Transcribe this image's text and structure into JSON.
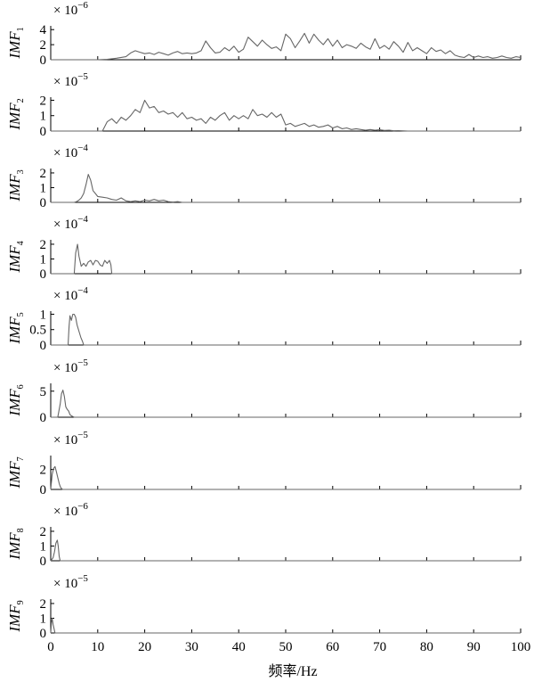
{
  "chart_data": {
    "type": "line",
    "xlabel": "频率/Hz",
    "xlim": [
      0,
      100
    ],
    "xticks": [
      0,
      10,
      20,
      30,
      40,
      50,
      60,
      70,
      80,
      90,
      100
    ],
    "panels": [
      {
        "ylabel": "IMF",
        "sub": "1",
        "mult_base": "× 10",
        "mult_exp": "−6",
        "yticks": [
          "4",
          "2",
          "0"
        ],
        "ytick_values": [
          4,
          2,
          0
        ],
        "ylim": [
          0,
          4.5
        ],
        "series": {
          "x": [
            0,
            5,
            10,
            12,
            14,
            16,
            17,
            18,
            19,
            20,
            21,
            22,
            23,
            24,
            25,
            26,
            27,
            28,
            29,
            30,
            31,
            32,
            33,
            34,
            35,
            36,
            37,
            38,
            39,
            40,
            41,
            42,
            43,
            44,
            45,
            46,
            47,
            48,
            49,
            50,
            51,
            52,
            53,
            54,
            55,
            56,
            57,
            58,
            59,
            60,
            61,
            62,
            63,
            64,
            65,
            66,
            67,
            68,
            69,
            70,
            71,
            72,
            73,
            74,
            75,
            76,
            77,
            78,
            79,
            80,
            81,
            82,
            83,
            84,
            85,
            86,
            87,
            88,
            89,
            90,
            91,
            92,
            93,
            94,
            95,
            96,
            97,
            98,
            99,
            100
          ],
          "y": [
            0,
            0,
            0,
            0.05,
            0.2,
            0.4,
            0.9,
            1.2,
            1.0,
            0.8,
            0.9,
            0.7,
            1.0,
            0.8,
            0.6,
            0.9,
            1.1,
            0.8,
            0.9,
            0.8,
            0.9,
            1.2,
            2.5,
            1.6,
            0.9,
            1.0,
            1.6,
            1.2,
            1.8,
            1.0,
            1.4,
            3.0,
            2.4,
            1.8,
            2.6,
            2.0,
            1.5,
            1.7,
            1.2,
            3.4,
            2.8,
            1.6,
            2.5,
            3.5,
            2.2,
            3.4,
            2.6,
            2.0,
            2.8,
            1.8,
            2.6,
            1.6,
            2.0,
            1.8,
            1.5,
            2.2,
            1.7,
            1.4,
            2.8,
            1.5,
            1.9,
            1.4,
            2.4,
            1.8,
            1.0,
            2.3,
            1.2,
            1.6,
            1.2,
            0.8,
            1.6,
            1.1,
            1.3,
            0.8,
            1.2,
            0.6,
            0.4,
            0.3,
            0.7,
            0.3,
            0.5,
            0.3,
            0.4,
            0.2,
            0.3,
            0.5,
            0.3,
            0.2,
            0.4,
            0.3
          ]
        }
      },
      {
        "ylabel": "IMF",
        "sub": "2",
        "mult_base": "× 10",
        "mult_exp": "−5",
        "yticks": [
          "2",
          "1",
          "0"
        ],
        "ytick_values": [
          2,
          1,
          0
        ],
        "ylim": [
          0,
          2.2
        ],
        "series": {
          "x": [
            0,
            11,
            12,
            13,
            14,
            15,
            16,
            17,
            18,
            19,
            20,
            21,
            22,
            23,
            24,
            25,
            26,
            27,
            28,
            29,
            30,
            31,
            32,
            33,
            34,
            35,
            36,
            37,
            38,
            39,
            40,
            41,
            42,
            43,
            44,
            45,
            46,
            47,
            48,
            49,
            50,
            51,
            52,
            53,
            54,
            55,
            56,
            57,
            58,
            59,
            60,
            61,
            62,
            63,
            64,
            65,
            66,
            67,
            68,
            69,
            70,
            71,
            72,
            73,
            74,
            75,
            76,
            100
          ],
          "y": [
            0,
            0,
            0.6,
            0.8,
            0.5,
            0.9,
            0.7,
            1.0,
            1.4,
            1.2,
            2.0,
            1.5,
            1.6,
            1.2,
            1.3,
            1.1,
            1.2,
            0.9,
            1.2,
            0.8,
            0.9,
            0.7,
            0.8,
            0.5,
            0.9,
            0.7,
            1.0,
            1.2,
            0.7,
            1.0,
            0.8,
            1.0,
            0.8,
            1.4,
            1.0,
            1.1,
            0.9,
            1.2,
            0.9,
            1.1,
            0.4,
            0.5,
            0.3,
            0.4,
            0.5,
            0.3,
            0.4,
            0.25,
            0.3,
            0.4,
            0.2,
            0.3,
            0.15,
            0.2,
            0.1,
            0.15,
            0.1,
            0.05,
            0.1,
            0.05,
            0.08,
            0.04,
            0.05,
            0.02,
            0.03,
            0.01,
            0,
            0
          ]
        }
      },
      {
        "ylabel": "IMF",
        "sub": "3",
        "mult_base": "× 10",
        "mult_exp": "−4",
        "yticks": [
          "2",
          "1",
          "0"
        ],
        "ytick_values": [
          2,
          1,
          0
        ],
        "ylim": [
          0,
          2.3
        ],
        "series": {
          "x": [
            0,
            5,
            5.5,
            6,
            6.5,
            7,
            7.5,
            8,
            8.5,
            9,
            9.5,
            10,
            11,
            12,
            13,
            14,
            15,
            16,
            17,
            18,
            19,
            20,
            21,
            22,
            23,
            24,
            25,
            26,
            27,
            28,
            100
          ],
          "y": [
            0,
            0,
            0.05,
            0.15,
            0.3,
            0.6,
            1.2,
            1.9,
            1.5,
            0.8,
            0.6,
            0.4,
            0.35,
            0.3,
            0.2,
            0.15,
            0.3,
            0.1,
            0.05,
            0.1,
            0.05,
            0.15,
            0.1,
            0.2,
            0.1,
            0.15,
            0.05,
            0.02,
            0.05,
            0,
            0
          ]
        }
      },
      {
        "ylabel": "IMF",
        "sub": "4",
        "mult_base": "× 10",
        "mult_exp": "−4",
        "yticks": [
          "2",
          "1",
          "0"
        ],
        "ytick_values": [
          2,
          1,
          0
        ],
        "ylim": [
          0,
          2.3
        ],
        "series": {
          "x": [
            0,
            5,
            5.3,
            5.7,
            6,
            6.5,
            7,
            7.5,
            8,
            8.5,
            9,
            9.5,
            10,
            10.5,
            11,
            11.5,
            12,
            12.5,
            12.8,
            13,
            100
          ],
          "y": [
            0,
            0,
            1.4,
            2.0,
            1.2,
            0.5,
            0.7,
            0.5,
            0.8,
            0.9,
            0.6,
            0.9,
            0.85,
            0.6,
            0.5,
            0.9,
            0.7,
            0.9,
            0.6,
            0,
            0
          ]
        }
      },
      {
        "ylabel": "IMF",
        "sub": "5",
        "mult_base": "× 10",
        "mult_exp": "−4",
        "yticks": [
          "1",
          "0.5",
          "0"
        ],
        "ytick_values": [
          1,
          0.5,
          0
        ],
        "ylim": [
          0,
          1.1
        ],
        "series": {
          "x": [
            0,
            3.7,
            3.9,
            4.1,
            4.4,
            4.7,
            5,
            5.3,
            5.6,
            6,
            6.4,
            6.8,
            7,
            100
          ],
          "y": [
            0,
            0,
            0.6,
            0.95,
            0.8,
            1.0,
            1.0,
            0.9,
            0.65,
            0.45,
            0.25,
            0.1,
            0,
            0
          ]
        }
      },
      {
        "ylabel": "IMF",
        "sub": "6",
        "mult_base": "× 10",
        "mult_exp": "−5",
        "yticks": [
          "5",
          "0"
        ],
        "ytick_values": [
          5,
          0
        ],
        "ylim": [
          0,
          6.5
        ],
        "series": {
          "x": [
            0,
            1.5,
            2,
            2.3,
            2.6,
            2.9,
            3.2,
            3.5,
            3.8,
            4.1,
            4.5,
            5,
            100
          ],
          "y": [
            0,
            0,
            2.5,
            4.5,
            5.2,
            4.0,
            2.0,
            1.5,
            1.2,
            0.5,
            0.2,
            0,
            0
          ]
        }
      },
      {
        "ylabel": "IMF",
        "sub": "7",
        "mult_base": "× 10",
        "mult_exp": "−5",
        "yticks": [
          "2",
          "0"
        ],
        "ytick_values": [
          2,
          0
        ],
        "ylim": [
          0,
          3.4
        ],
        "series": {
          "x": [
            0,
            0.3,
            0.6,
            0.9,
            1.2,
            1.5,
            1.8,
            2.1,
            2.5,
            100
          ],
          "y": [
            0,
            1.5,
            2.1,
            2.3,
            1.8,
            1.2,
            0.6,
            0.2,
            0,
            0
          ]
        }
      },
      {
        "ylabel": "IMF",
        "sub": "8",
        "mult_base": "× 10",
        "mult_exp": "−6",
        "yticks": [
          "2",
          "1",
          "0"
        ],
        "ytick_values": [
          2,
          1,
          0
        ],
        "ylim": [
          0,
          2.3
        ],
        "series": {
          "x": [
            0,
            0.5,
            0.8,
            1.1,
            1.4,
            1.6,
            1.8,
            2.0,
            100
          ],
          "y": [
            0,
            0.2,
            0.6,
            1.2,
            1.4,
            1.0,
            0.3,
            0,
            0
          ]
        }
      },
      {
        "ylabel": "IMF",
        "sub": "9",
        "mult_base": "× 10",
        "mult_exp": "−5",
        "yticks": [
          "2",
          "1",
          "0"
        ],
        "ytick_values": [
          2,
          1,
          0
        ],
        "ylim": [
          0,
          2.3
        ],
        "series": {
          "x": [
            0,
            0.15,
            0.3,
            0.5,
            0.7,
            0.9,
            100
          ],
          "y": [
            0,
            0.7,
            1.0,
            0.6,
            0.3,
            0,
            0
          ]
        }
      }
    ]
  }
}
